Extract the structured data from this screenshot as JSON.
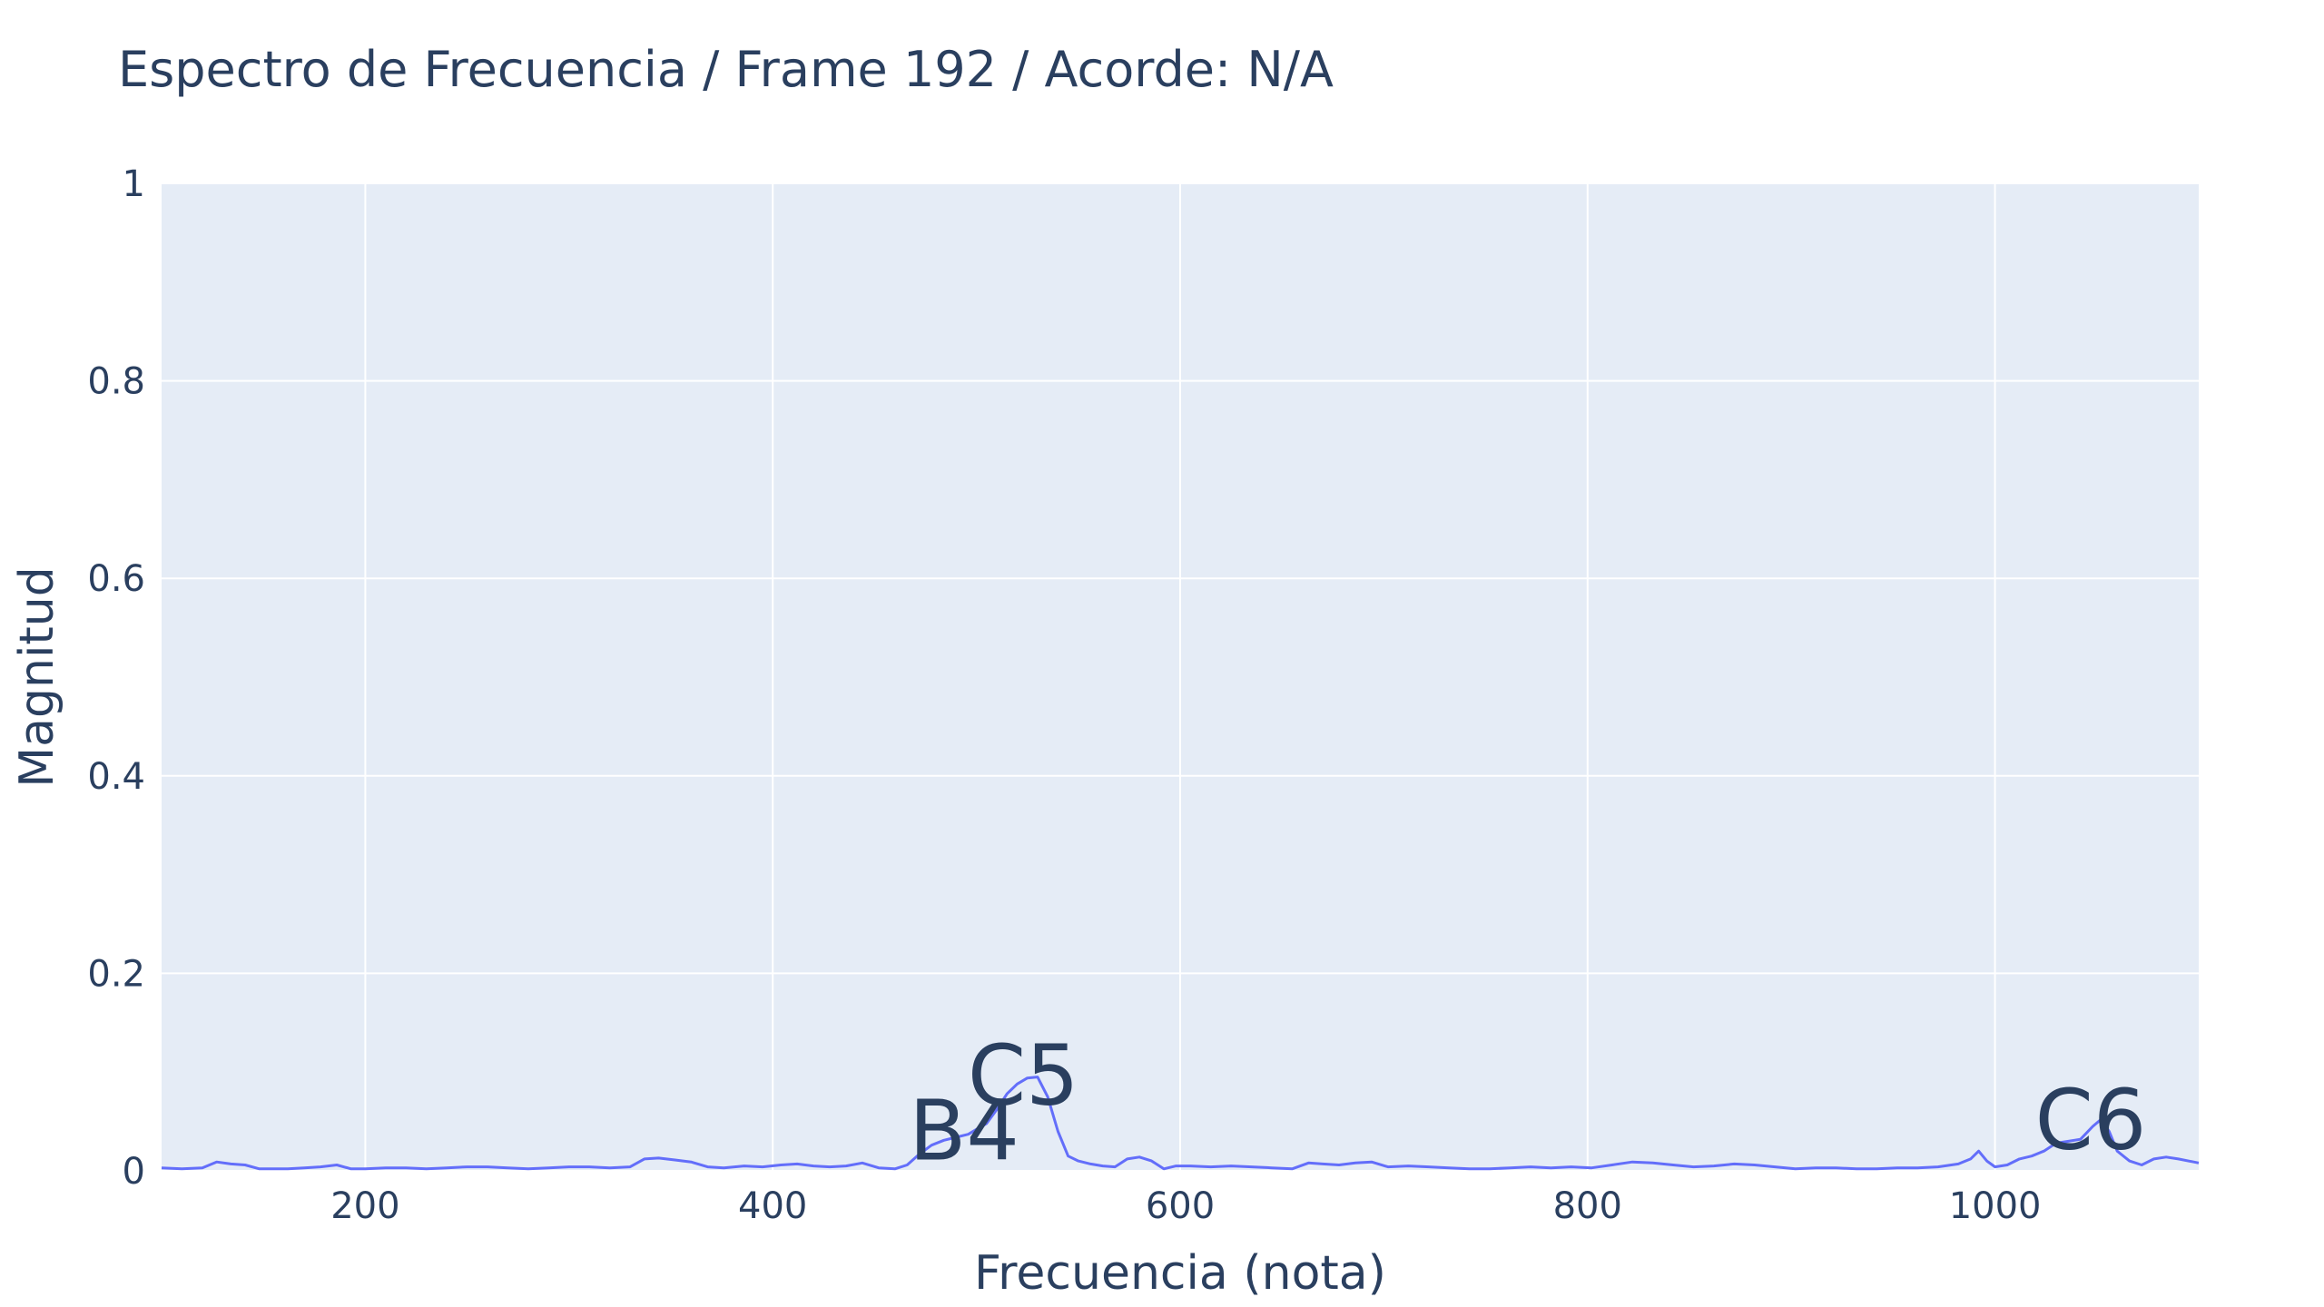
{
  "chart_data": {
    "type": "line",
    "title": "Espectro de Frecuencia / Frame 192 / Acorde: N/A",
    "xlabel": "Frecuencia (nota)",
    "ylabel": "Magnitud",
    "xlim": [
      100,
      1100
    ],
    "ylim": [
      0,
      1
    ],
    "x_ticks": [
      200,
      400,
      600,
      800,
      1000
    ],
    "x_tick_labels": [
      "200",
      "400",
      "600",
      "800",
      "1000"
    ],
    "y_ticks": [
      0,
      0.2,
      0.4,
      0.6,
      0.8,
      1
    ],
    "y_tick_labels": [
      "0",
      "0.2",
      "0.4",
      "0.6",
      "0.8",
      "1"
    ],
    "grid": true,
    "plot_background": "#e5ecf6",
    "line_color": "#636efa",
    "series": [
      {
        "x": [
          100,
          110,
          120,
          127,
          134,
          141,
          148,
          155,
          162,
          170,
          178,
          186,
          193,
          200,
          210,
          220,
          230,
          240,
          250,
          260,
          270,
          280,
          290,
          300,
          310,
          320,
          330,
          337,
          344,
          352,
          360,
          368,
          376,
          386,
          395,
          404,
          412,
          420,
          428,
          436,
          444,
          452,
          460,
          466,
          472,
          478,
          484,
          490,
          496,
          500,
          505,
          510,
          515,
          520,
          525,
          530,
          535,
          540,
          545,
          550,
          556,
          562,
          568,
          574,
          580,
          586,
          592,
          598,
          605,
          615,
          625,
          635,
          645,
          655,
          663,
          670,
          678,
          686,
          694,
          702,
          712,
          722,
          732,
          742,
          752,
          762,
          772,
          782,
          792,
          802,
          812,
          822,
          832,
          842,
          852,
          862,
          872,
          882,
          892,
          902,
          912,
          922,
          932,
          942,
          952,
          962,
          972,
          982,
          988,
          992,
          996,
          1000,
          1006,
          1012,
          1018,
          1024,
          1030,
          1036,
          1042,
          1048,
          1052,
          1056,
          1060,
          1066,
          1072,
          1078,
          1084,
          1090,
          1100
        ],
        "y": [
          0.003,
          0.002,
          0.003,
          0.009,
          0.007,
          0.006,
          0.002,
          0.002,
          0.002,
          0.003,
          0.004,
          0.006,
          0.002,
          0.002,
          0.003,
          0.003,
          0.002,
          0.003,
          0.004,
          0.004,
          0.003,
          0.002,
          0.003,
          0.004,
          0.004,
          0.003,
          0.004,
          0.012,
          0.013,
          0.011,
          0.009,
          0.004,
          0.003,
          0.005,
          0.004,
          0.006,
          0.007,
          0.005,
          0.004,
          0.005,
          0.008,
          0.003,
          0.002,
          0.006,
          0.017,
          0.026,
          0.031,
          0.034,
          0.037,
          0.042,
          0.048,
          0.062,
          0.078,
          0.088,
          0.094,
          0.095,
          0.075,
          0.04,
          0.015,
          0.01,
          0.007,
          0.005,
          0.004,
          0.012,
          0.014,
          0.01,
          0.002,
          0.005,
          0.005,
          0.004,
          0.005,
          0.004,
          0.003,
          0.002,
          0.008,
          0.007,
          0.006,
          0.008,
          0.009,
          0.004,
          0.005,
          0.004,
          0.003,
          0.002,
          0.002,
          0.003,
          0.004,
          0.003,
          0.004,
          0.003,
          0.006,
          0.009,
          0.008,
          0.006,
          0.004,
          0.005,
          0.007,
          0.006,
          0.004,
          0.002,
          0.003,
          0.003,
          0.002,
          0.002,
          0.003,
          0.003,
          0.004,
          0.007,
          0.012,
          0.02,
          0.01,
          0.004,
          0.006,
          0.012,
          0.015,
          0.02,
          0.028,
          0.03,
          0.032,
          0.045,
          0.052,
          0.04,
          0.02,
          0.01,
          0.006,
          0.012,
          0.014,
          0.012,
          0.008
        ]
      }
    ],
    "annotations": [
      {
        "text": "C5",
        "x": 523,
        "y": 0.095
      },
      {
        "text": "B4",
        "x": 494,
        "y": 0.039
      },
      {
        "text": "C6",
        "x": 1047,
        "y": 0.05
      }
    ]
  }
}
